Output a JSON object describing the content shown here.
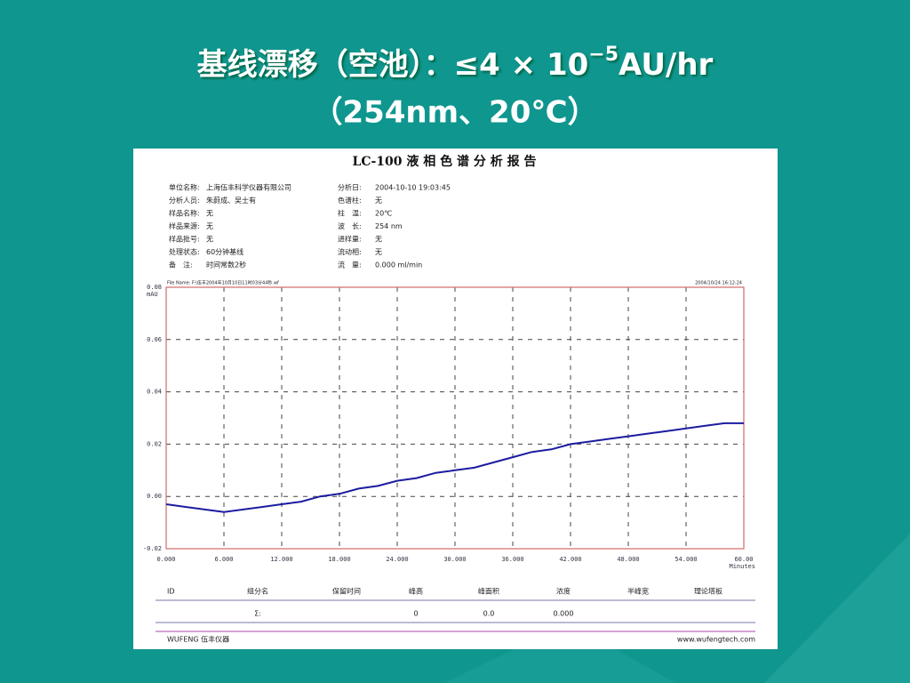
{
  "slide_title": {
    "line1_main": "基线漂移（空池）：≤4 × 10",
    "line1_superscript": "−5",
    "line1_unit": "AU/hr",
    "line2": "（254nm、20℃）"
  },
  "report": {
    "title": "LC-100 液 相 色 谱 分 析 报 告",
    "left_fields": [
      {
        "label": "单位名称:",
        "value": "上海伍丰科学仪器有限公司"
      },
      {
        "label": "分析人员:",
        "value": "朱蔚成、吴士有"
      },
      {
        "label": "样品名称:",
        "value": "无"
      },
      {
        "label": "样品来源:",
        "value": "无"
      },
      {
        "label": "样品批号:",
        "value": "无"
      },
      {
        "label": "处理状态:",
        "value": "60分钟基线"
      },
      {
        "label": "备　注:",
        "value": "时间常数2秒"
      }
    ],
    "right_fields": [
      {
        "label": "分析日:",
        "value": "2004-10-10 19:03:45"
      },
      {
        "label": "色谱柱:",
        "value": "无"
      },
      {
        "label": "柱　温:",
        "value": "20℃"
      },
      {
        "label": "波　长:",
        "value": "254 nm"
      },
      {
        "label": "进样量:",
        "value": "无"
      },
      {
        "label": "流动相:",
        "value": "无"
      },
      {
        "label": "流　量:",
        "value": "0.000 ml/min"
      }
    ],
    "file_name": "File Name: F:\\伍丰2004年10月10日11时03分44秒.wf",
    "timestamp": "2004/10/24 16:12:24",
    "table": {
      "headers": [
        "ID",
        "组分名",
        "保留时间",
        "峰高",
        "峰面积",
        "浓度",
        "半峰宽",
        "理论塔板"
      ],
      "rows": [
        [
          null,
          "Σ:",
          null,
          "0",
          "0.0",
          "0.000",
          null,
          null
        ]
      ]
    },
    "footer_left": "WUFENG 伍丰仪器",
    "footer_right": "www.wufengtech.com"
  },
  "chart_data": {
    "type": "line",
    "y_label": "mAU",
    "x_label": "Minutes",
    "x": [
      0,
      2,
      4,
      6,
      8,
      10,
      12,
      14,
      16,
      18,
      20,
      22,
      24,
      26,
      28,
      30,
      32,
      34,
      36,
      38,
      40,
      42,
      44,
      46,
      48,
      50,
      52,
      54,
      56,
      58,
      60
    ],
    "series": [
      {
        "color": "#1c1ca0",
        "values": [
          -0.003,
          -0.004,
          -0.005,
          -0.006,
          -0.005,
          -0.004,
          -0.003,
          -0.002,
          0.0,
          0.001,
          0.003,
          0.004,
          0.006,
          0.007,
          0.009,
          0.01,
          0.011,
          0.013,
          0.015,
          0.017,
          0.018,
          0.02,
          0.021,
          0.022,
          0.023,
          0.024,
          0.025,
          0.026,
          0.027,
          0.028,
          0.028
        ]
      }
    ],
    "xlim": [
      0,
      60
    ],
    "ylim": [
      -0.02,
      0.08
    ],
    "xticks": [
      {
        "value": 0,
        "label": "0.000"
      },
      {
        "value": 6,
        "label": "6.000"
      },
      {
        "value": 12,
        "label": "12.000"
      },
      {
        "value": 18,
        "label": "18.000"
      },
      {
        "value": 24,
        "label": "24.000"
      },
      {
        "value": 30,
        "label": "30.000"
      },
      {
        "value": 36,
        "label": "36.000"
      },
      {
        "value": 42,
        "label": "42.000"
      },
      {
        "value": 48,
        "label": "48.000"
      },
      {
        "value": 54,
        "label": "54.000"
      },
      {
        "value": 60,
        "label": "60.00"
      }
    ],
    "yticks": [
      -0.02,
      {
        "value": 0,
        "label": "0.00"
      },
      0.02,
      0.04,
      0.06,
      0.08
    ],
    "grid": true
  }
}
